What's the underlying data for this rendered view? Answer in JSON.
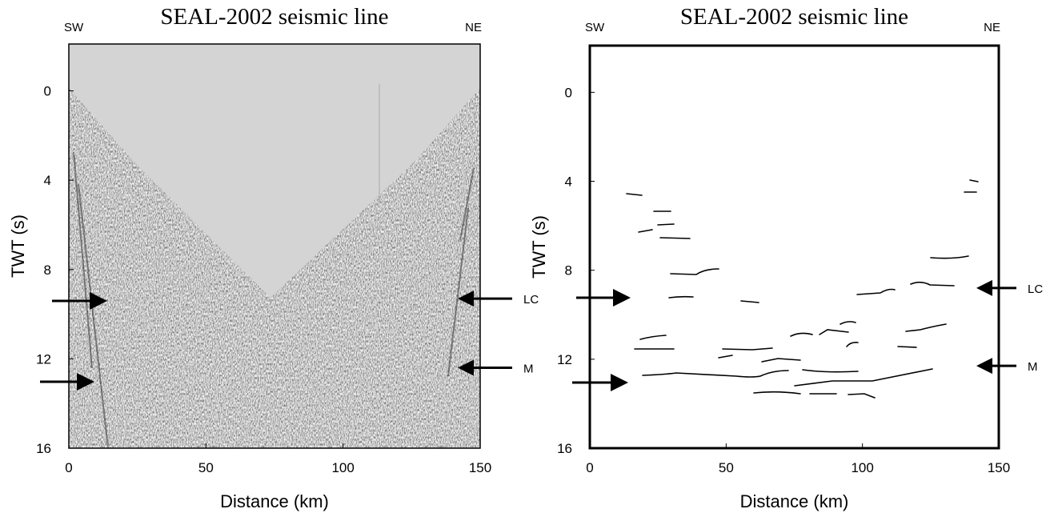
{
  "figure": {
    "panels": [
      {
        "title": "SEAL-2002 seismic line",
        "left_label": "SW",
        "right_label": "NE",
        "xlabel": "Distance (km)",
        "ylabel": "TWT (s)",
        "xlim": [
          0,
          150
        ],
        "ylim": [
          -2.1,
          16
        ],
        "xticks": [
          0,
          50,
          100,
          150
        ],
        "yticks": [
          0,
          4,
          8,
          12,
          16
        ],
        "annotations": [
          {
            "label": "LC",
            "y": 9.3
          },
          {
            "label": "M",
            "y": 12.4
          }
        ]
      },
      {
        "title": "SEAL-2002 seismic line",
        "left_label": "SW",
        "right_label": "NE",
        "xlabel": "Distance (km)",
        "ylabel": "TWT (s)",
        "xlim": [
          0,
          150
        ],
        "ylim": [
          -2.1,
          16
        ],
        "xticks": [
          0,
          50,
          100,
          150
        ],
        "yticks": [
          0,
          4,
          8,
          12,
          16
        ],
        "annotations": [
          {
            "label": "LC",
            "y": 8.8
          },
          {
            "label": "M",
            "y": 12.3
          }
        ]
      }
    ]
  }
}
